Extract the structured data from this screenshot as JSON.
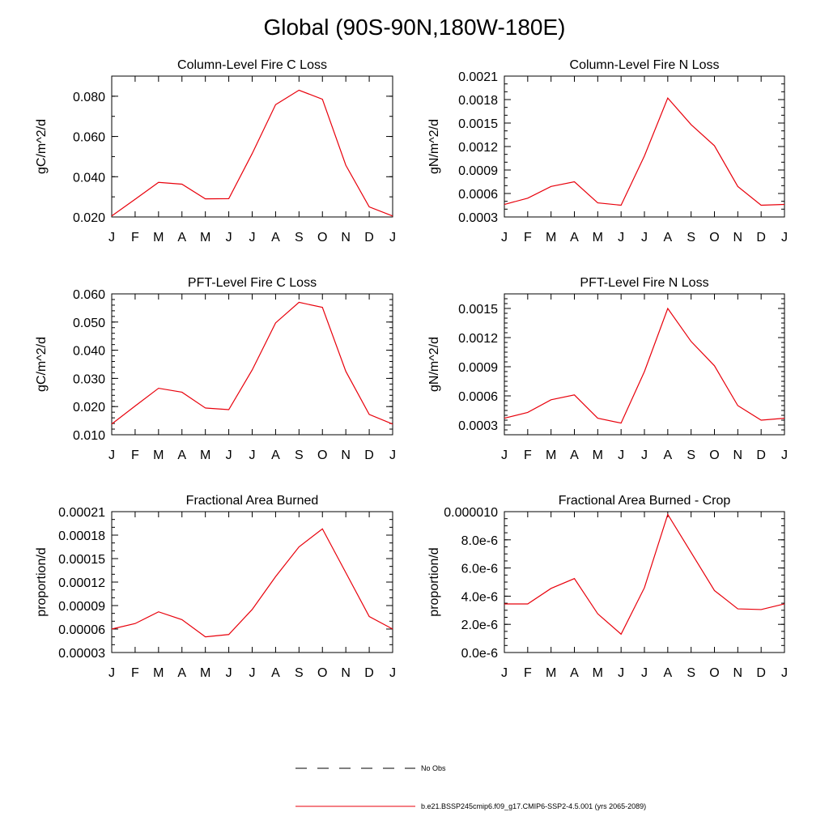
{
  "page": {
    "title": "Global (90S-90N,180W-180E)"
  },
  "colors": {
    "series": "#e8000b",
    "frame": "#000000",
    "obs": "#000000"
  },
  "legend": {
    "obs_label": "No Obs",
    "model_label": "b.e21.BSSP245cmip6.f09_g17.CMIP6-SSP2-4.5.001 (yrs 2065-2089)"
  },
  "chart_data": [
    {
      "type": "line",
      "title": "Column-Level Fire C Loss",
      "ylabel": "gC/m^2/d",
      "categories": [
        "J",
        "F",
        "M",
        "A",
        "M",
        "J",
        "J",
        "A",
        "S",
        "O",
        "N",
        "D",
        "J"
      ],
      "ylim": [
        0.02,
        0.09
      ],
      "yticks": [
        0.02,
        0.04,
        0.06,
        0.08
      ],
      "ytick_labels": [
        "0.020",
        "0.040",
        "0.060",
        "0.080"
      ],
      "yminor": 0.01,
      "series": [
        {
          "values": [
            0.0205,
            0.0288,
            0.0372,
            0.0363,
            0.029,
            0.0291,
            0.0515,
            0.0758,
            0.083,
            0.0785,
            0.0457,
            0.025,
            0.0205
          ]
        }
      ]
    },
    {
      "type": "line",
      "title": "Column-Level Fire N Loss",
      "ylabel": "gN/m^2/d",
      "categories": [
        "J",
        "F",
        "M",
        "A",
        "M",
        "J",
        "J",
        "A",
        "S",
        "O",
        "N",
        "D",
        "J"
      ],
      "ylim": [
        0.0003,
        0.0021
      ],
      "yticks": [
        0.0003,
        0.0006,
        0.0009,
        0.0012,
        0.0015,
        0.0018,
        0.0021
      ],
      "ytick_labels": [
        "0.0003",
        "0.0006",
        "0.0009",
        "0.0012",
        "0.0015",
        "0.0018",
        "0.0021"
      ],
      "yminor": 0.0001,
      "series": [
        {
          "values": [
            0.00046,
            0.00054,
            0.00069,
            0.00075,
            0.00048,
            0.00045,
            0.00108,
            0.00182,
            0.00148,
            0.00121,
            0.00069,
            0.00045,
            0.00046
          ]
        }
      ]
    },
    {
      "type": "line",
      "title": "PFT-Level Fire C Loss",
      "ylabel": "gC/m^2/d",
      "categories": [
        "J",
        "F",
        "M",
        "A",
        "M",
        "J",
        "J",
        "A",
        "S",
        "O",
        "N",
        "D",
        "J"
      ],
      "ylim": [
        0.01,
        0.06
      ],
      "yticks": [
        0.01,
        0.02,
        0.03,
        0.04,
        0.05,
        0.06
      ],
      "ytick_labels": [
        "0.010",
        "0.020",
        "0.030",
        "0.040",
        "0.050",
        "0.060"
      ],
      "yminor": 0.002,
      "series": [
        {
          "values": [
            0.0138,
            0.0202,
            0.0265,
            0.0251,
            0.0195,
            0.0189,
            0.033,
            0.0497,
            0.057,
            0.0552,
            0.0325,
            0.0172,
            0.0138
          ]
        }
      ]
    },
    {
      "type": "line",
      "title": "PFT-Level Fire N Loss",
      "ylabel": "gN/m^2/d",
      "categories": [
        "J",
        "F",
        "M",
        "A",
        "M",
        "J",
        "J",
        "A",
        "S",
        "O",
        "N",
        "D",
        "J"
      ],
      "ylim": [
        0.0002,
        0.00165
      ],
      "yticks": [
        0.0003,
        0.0006,
        0.0009,
        0.0012,
        0.0015
      ],
      "ytick_labels": [
        "0.0003",
        "0.0006",
        "0.0009",
        "0.0012",
        "0.0015"
      ],
      "yminor": 5e-05,
      "series": [
        {
          "values": [
            0.00037,
            0.00043,
            0.00056,
            0.00061,
            0.00037,
            0.00032,
            0.00085,
            0.0015,
            0.00116,
            0.00091,
            0.0005,
            0.00035,
            0.00037
          ]
        }
      ]
    },
    {
      "type": "line",
      "title": "Fractional Area Burned",
      "ylabel": "proportion/d",
      "categories": [
        "J",
        "F",
        "M",
        "A",
        "M",
        "J",
        "J",
        "A",
        "S",
        "O",
        "N",
        "D",
        "J"
      ],
      "ylim": [
        3e-05,
        0.00021
      ],
      "yticks": [
        3e-05,
        6e-05,
        9e-05,
        0.00012,
        0.00015,
        0.00018,
        0.00021
      ],
      "ytick_labels": [
        "0.00003",
        "0.00006",
        "0.00009",
        "0.00012",
        "0.00015",
        "0.00018",
        "0.00021"
      ],
      "yminor": 1e-05,
      "series": [
        {
          "values": [
            6e-05,
            6.7e-05,
            8.2e-05,
            7.2e-05,
            5e-05,
            5.3e-05,
            8.5e-05,
            0.000127,
            0.000165,
            0.000188,
            0.000132,
            7.6e-05,
            6e-05
          ]
        }
      ]
    },
    {
      "type": "line",
      "title": "Fractional Area Burned - Crop",
      "ylabel": "proportion/d",
      "categories": [
        "J",
        "F",
        "M",
        "A",
        "M",
        "J",
        "J",
        "A",
        "S",
        "O",
        "N",
        "D",
        "J"
      ],
      "ylim": [
        0.0,
        1e-05
      ],
      "yticks": [
        0.0,
        2e-06,
        4e-06,
        6e-06,
        8e-06,
        1e-05
      ],
      "ytick_labels": [
        "0.0e-6",
        "2.0e-6",
        "4.0e-6",
        "6.0e-6",
        "8.0e-6",
        "0.000010"
      ],
      "yminor": 5e-07,
      "series": [
        {
          "values": [
            3.45e-06,
            3.45e-06,
            4.55e-06,
            5.25e-06,
            2.75e-06,
            1.3e-06,
            4.6e-06,
            9.8e-06,
            7.1e-06,
            4.4e-06,
            3.1e-06,
            3.05e-06,
            3.45e-06
          ]
        }
      ]
    }
  ]
}
